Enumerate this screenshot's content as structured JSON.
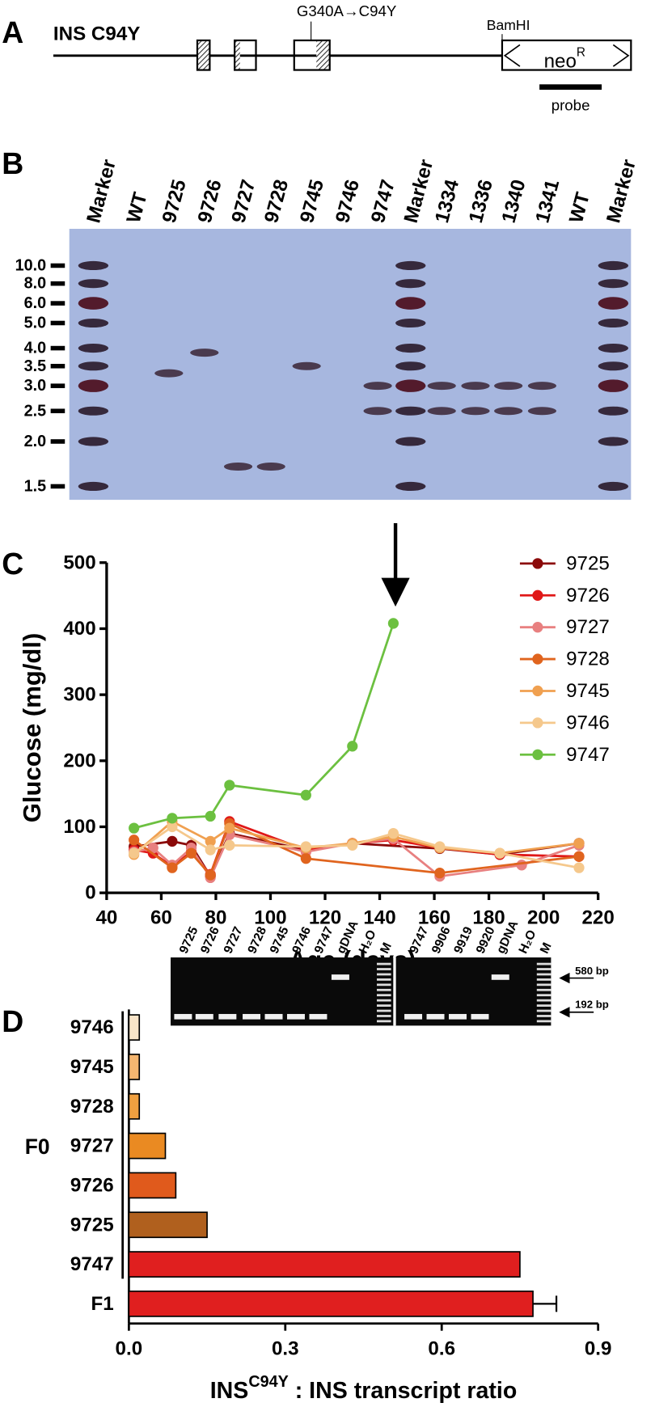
{
  "panel_a": {
    "label": "A",
    "construct": "INS C94Y",
    "mutation": "G340A→C94Y",
    "site": "BamHI",
    "cassette": {
      "text": "neo",
      "sup": "R"
    },
    "probe": "probe"
  },
  "panel_b": {
    "label": "B",
    "lanes": [
      "Marker",
      "WT",
      "9725",
      "9726",
      "9727",
      "9728",
      "9745",
      "9746",
      "9747",
      "Marker",
      "1334",
      "1336",
      "1340",
      "1341",
      "WT",
      "Marker"
    ],
    "sizes": [
      "10.0",
      "8.0",
      "6.0",
      "5.0",
      "4.0",
      "3.5",
      "3.0",
      "2.5",
      "2.0",
      "1.5"
    ]
  },
  "panel_c": {
    "label": "C"
  },
  "panel_d": {
    "label": "D",
    "group": "F0",
    "gel_lanes_left": [
      "9725",
      "9726",
      "9727",
      "9728",
      "9745",
      "9746",
      "9747",
      "gDNA",
      "H₂O",
      "M"
    ],
    "gel_lanes_right": [
      "9747",
      "9906",
      "9919",
      "9920",
      "gDNA",
      "H₂O",
      "M"
    ],
    "size_labels": [
      "580 bp",
      "192 bp"
    ]
  },
  "chart_data": [
    {
      "type": "line",
      "xlabel": "Age (days)",
      "ylabel": "Glucose (mg/dl)",
      "xlim": [
        40,
        220
      ],
      "ylim": [
        0,
        500
      ],
      "xticks": [
        40,
        60,
        80,
        100,
        120,
        140,
        160,
        180,
        200,
        220
      ],
      "yticks": [
        0,
        100,
        200,
        300,
        400,
        500
      ],
      "legend": "upper right",
      "series": [
        {
          "name": "9725",
          "color": "#8b0a0a",
          "x": [
            50,
            64,
            71,
            78,
            85,
            113,
            130,
            162,
            184,
            213
          ],
          "values": [
            70,
            78,
            72,
            25,
            90,
            65,
            75,
            67,
            58,
            75
          ]
        },
        {
          "name": "9726",
          "color": "#e01818",
          "x": [
            50,
            57,
            64,
            71,
            78,
            85,
            113,
            130,
            145,
            162,
            184,
            213
          ],
          "values": [
            65,
            60,
            40,
            62,
            28,
            108,
            65,
            75,
            80,
            68,
            58,
            55
          ]
        },
        {
          "name": "9727",
          "color": "#e88080",
          "x": [
            50,
            57,
            64,
            71,
            78,
            85,
            113,
            130,
            145,
            162,
            192,
            213
          ],
          "values": [
            62,
            68,
            42,
            68,
            23,
            88,
            62,
            75,
            82,
            25,
            42,
            72
          ]
        },
        {
          "name": "9728",
          "color": "#e0641e",
          "x": [
            50,
            64,
            71,
            78,
            85,
            113,
            162,
            213
          ],
          "values": [
            80,
            38,
            60,
            27,
            105,
            52,
            30,
            55
          ]
        },
        {
          "name": "9745",
          "color": "#f0a050",
          "x": [
            50,
            64,
            78,
            85,
            113,
            130,
            145,
            162,
            184,
            213
          ],
          "values": [
            58,
            108,
            78,
            98,
            68,
            75,
            85,
            68,
            60,
            75
          ]
        },
        {
          "name": "9746",
          "color": "#f5c88c",
          "x": [
            50,
            64,
            78,
            85,
            113,
            130,
            145,
            162,
            184,
            213
          ],
          "values": [
            60,
            100,
            65,
            72,
            70,
            72,
            90,
            70,
            60,
            38
          ]
        },
        {
          "name": "9747",
          "color": "#6cc040",
          "x": [
            50,
            64,
            78,
            85,
            113,
            130,
            145
          ],
          "values": [
            98,
            113,
            116,
            163,
            148,
            222,
            408
          ]
        }
      ]
    },
    {
      "type": "barh",
      "categories": [
        "9746",
        "9745",
        "9728",
        "9727",
        "9726",
        "9725",
        "9747",
        "F1"
      ],
      "values": [
        0.02,
        0.02,
        0.02,
        0.07,
        0.09,
        0.15,
        0.75,
        0.775
      ],
      "errors": [
        null,
        null,
        null,
        null,
        null,
        null,
        null,
        0.045
      ],
      "colors": [
        "#f8e4c8",
        "#f5b670",
        "#f0a040",
        "#ea8a22",
        "#e05a1c",
        "#b0601e",
        "#e01f1f",
        "#e01f1f"
      ],
      "xlim": [
        0,
        0.9
      ],
      "xticks": [
        {
          "value": 0,
          "label": "0.0"
        },
        0.3,
        0.6,
        0.9
      ],
      "xlabel": {
        "text": "INS",
        "sup": "C94Y",
        "rest": " : INS transcript ratio"
      }
    }
  ]
}
